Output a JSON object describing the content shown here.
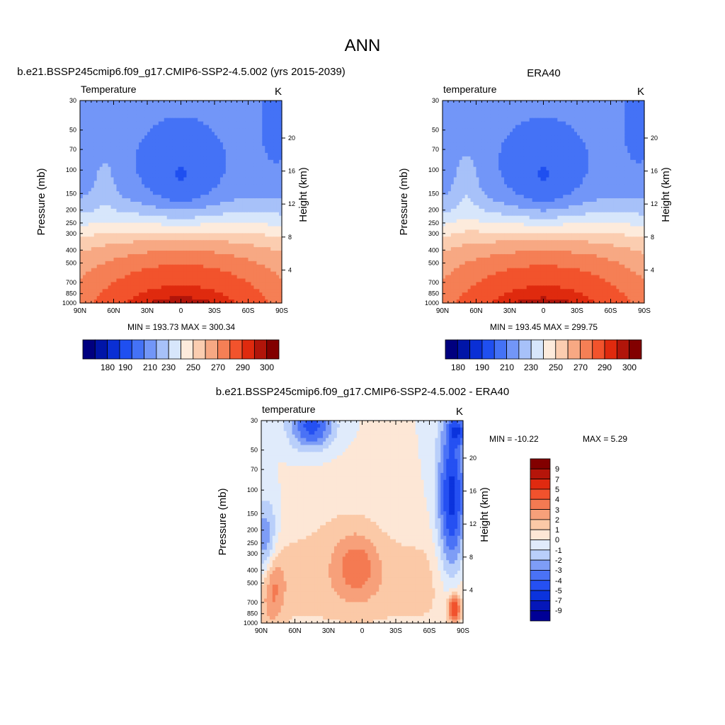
{
  "figure_title": "ANN",
  "colors": {
    "main_scale": [
      "#00007f",
      "#0015a8",
      "#0a2fd5",
      "#1f4ff0",
      "#4472f6",
      "#7296f8",
      "#a7c1f9",
      "#d7e6fb",
      "#fdebdc",
      "#fbcdb0",
      "#f7a883",
      "#f57f55",
      "#f2532c",
      "#df2a0e",
      "#b1150a",
      "#820000"
    ],
    "diff_scale": [
      "#000096",
      "#0517b9",
      "#0b33dd",
      "#2550f2",
      "#4a72f6",
      "#7e9df6",
      "#b9cffa",
      "#e0ebfb",
      "#fde7d6",
      "#fbc9a7",
      "#f7a07a",
      "#f47a52",
      "#f1522d",
      "#e02a10",
      "#b5150a",
      "#820000"
    ]
  },
  "panels": {
    "model": {
      "title": "b.e21.BSSP245cmip6.f09_g17.CMIP6-SSP2-4.5.002 (yrs 2015-2039)",
      "left_label": "Temperature",
      "units": "K",
      "stats": "MIN = 193.73  MAX = 300.34",
      "colorbar_labels": [
        "180",
        "190",
        "210",
        "230",
        "250",
        "270",
        "290",
        "300"
      ]
    },
    "obs": {
      "title": "ERA40",
      "left_label": "temperature",
      "units": "K",
      "stats": "MIN = 193.45  MAX = 299.75",
      "colorbar_labels": [
        "180",
        "190",
        "210",
        "230",
        "250",
        "270",
        "290",
        "300"
      ]
    },
    "diff": {
      "title": "b.e21.BSSP245cmip6.f09_g17.CMIP6-SSP2-4.5.002 - ERA40",
      "left_label": "temperature",
      "units": "K",
      "stats_min": "MIN = -10.22",
      "stats_max": "MAX =   5.29",
      "colorbar_labels": [
        "9",
        "7",
        "5",
        "4",
        "3",
        "2",
        "1",
        "0",
        "-1",
        "-2",
        "-3",
        "-4",
        "-5",
        "-7",
        "-9"
      ]
    }
  },
  "chart_data": [
    {
      "type": "heatmap",
      "title": "b.e21.BSSP245cmip6.f09_g17.CMIP6-SSP2-4.5.002 (yrs 2015-2039)",
      "variable": "Temperature",
      "units": "K",
      "xlabel": "",
      "ylabel": "Pressure (mb)",
      "ylabel_right": "Height (km)",
      "x_ticks": [
        "90N",
        "60N",
        "30N",
        "0",
        "30S",
        "60S",
        "90S"
      ],
      "y_ticks": [
        30,
        50,
        70,
        100,
        150,
        200,
        250,
        300,
        400,
        500,
        700,
        850,
        1000
      ],
      "y_right_ticks": [
        4,
        8,
        12,
        16,
        20
      ],
      "x_range": [
        90,
        -90
      ],
      "y_range": [
        1000,
        30
      ],
      "min": 193.73,
      "max": 300.34,
      "levels": [
        180,
        185,
        190,
        200,
        210,
        220,
        230,
        240,
        250,
        260,
        270,
        280,
        290,
        295,
        300
      ]
    },
    {
      "type": "heatmap",
      "title": "ERA40",
      "variable": "temperature",
      "units": "K",
      "xlabel": "",
      "ylabel": "Pressure (mb)",
      "ylabel_right": "Height (km)",
      "x_ticks": [
        "90N",
        "60N",
        "30N",
        "0",
        "30S",
        "60S",
        "90S"
      ],
      "y_ticks": [
        30,
        50,
        70,
        100,
        150,
        200,
        250,
        300,
        400,
        500,
        700,
        850,
        1000
      ],
      "y_right_ticks": [
        4,
        8,
        12,
        16,
        20
      ],
      "x_range": [
        90,
        -90
      ],
      "y_range": [
        1000,
        30
      ],
      "min": 193.45,
      "max": 299.75,
      "levels": [
        180,
        185,
        190,
        200,
        210,
        220,
        230,
        240,
        250,
        260,
        270,
        280,
        290,
        295,
        300
      ]
    },
    {
      "type": "heatmap",
      "title": "b.e21.BSSP245cmip6.f09_g17.CMIP6-SSP2-4.5.002 - ERA40",
      "variable": "temperature",
      "units": "K",
      "xlabel": "",
      "ylabel": "Pressure (mb)",
      "ylabel_right": "Height (km)",
      "x_ticks": [
        "90N",
        "60N",
        "30N",
        "0",
        "30S",
        "60S",
        "90S"
      ],
      "y_ticks": [
        30,
        50,
        70,
        100,
        150,
        200,
        250,
        300,
        400,
        500,
        700,
        850,
        1000
      ],
      "y_right_ticks": [
        4,
        8,
        12,
        16,
        20
      ],
      "x_range": [
        90,
        -90
      ],
      "y_range": [
        1000,
        30
      ],
      "min": -10.22,
      "max": 5.29,
      "levels": [
        -9,
        -7,
        -5,
        -4,
        -3,
        -2,
        -1,
        0,
        1,
        2,
        3,
        4,
        5,
        7,
        9
      ]
    }
  ]
}
